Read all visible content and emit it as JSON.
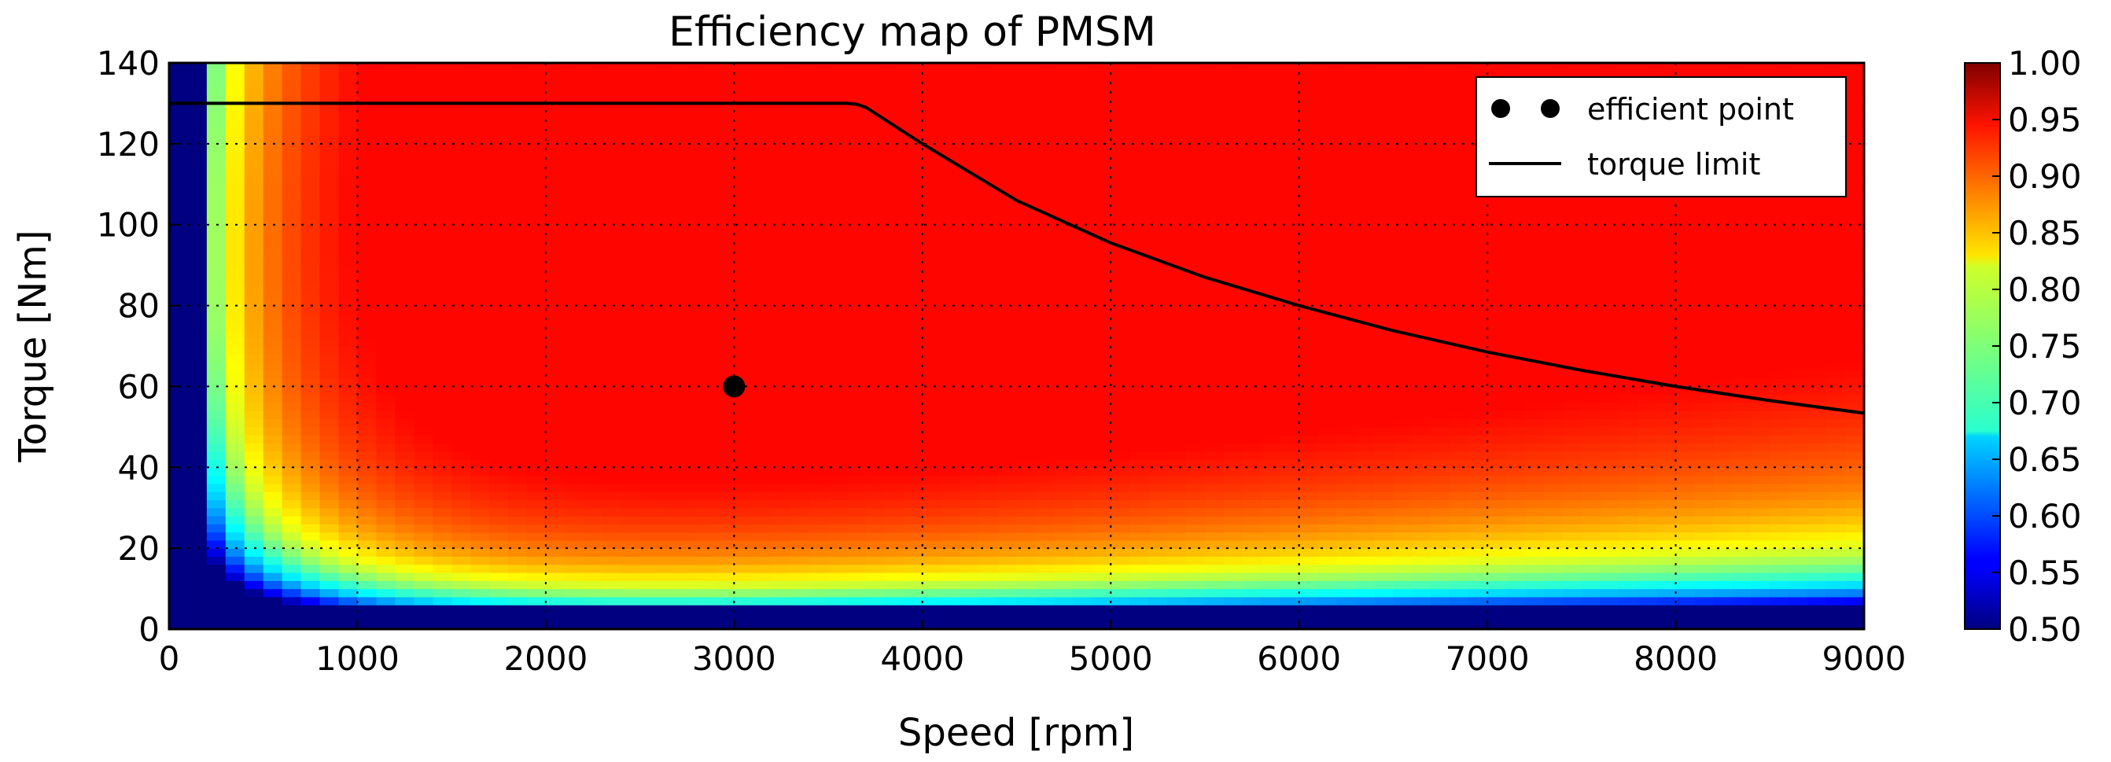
{
  "chart_data": {
    "type": "heatmap",
    "title": "Efficiency map of PMSM",
    "xlabel": "Speed [rpm]",
    "ylabel": "Torque [Nm]",
    "xlim": [
      0,
      9000
    ],
    "ylim": [
      0,
      140
    ],
    "xticks": [
      "0",
      "1000",
      "2000",
      "3000",
      "4000",
      "5000",
      "6000",
      "7000",
      "8000",
      "9000"
    ],
    "yticks": [
      "0",
      "20",
      "40",
      "60",
      "80",
      "100",
      "120",
      "140"
    ],
    "grid": true,
    "colorbar": {
      "colormap": "jet",
      "range": [
        0.5,
        1.0
      ],
      "ticks": [
        "0.50",
        "0.55",
        "0.60",
        "0.65",
        "0.70",
        "0.75",
        "0.80",
        "0.85",
        "0.90",
        "0.95",
        "1.00"
      ]
    },
    "legend": {
      "position": "top-right",
      "entries": [
        {
          "label": "efficient point",
          "kind": "marker"
        },
        {
          "label": "torque limit",
          "kind": "line"
        }
      ]
    },
    "efficient_point": {
      "x": 3000,
      "y": 60
    },
    "torque_limit": {
      "x": [
        0,
        3600,
        3650,
        3700,
        4000,
        4500,
        5000,
        5500,
        6000,
        6500,
        7000,
        7500,
        8000,
        8500,
        9000
      ],
      "y": [
        130,
        130,
        129.8,
        129,
        120,
        106,
        95.5,
        87,
        80,
        73.8,
        68.5,
        64,
        60,
        56.5,
        53.4
      ]
    },
    "efficiency_model": {
      "peak_efficiency": 0.935,
      "peak_speed": 3000,
      "peak_torque": 50,
      "low_torque_cutoff": 6,
      "low_speed_cutoff": 250
    }
  }
}
